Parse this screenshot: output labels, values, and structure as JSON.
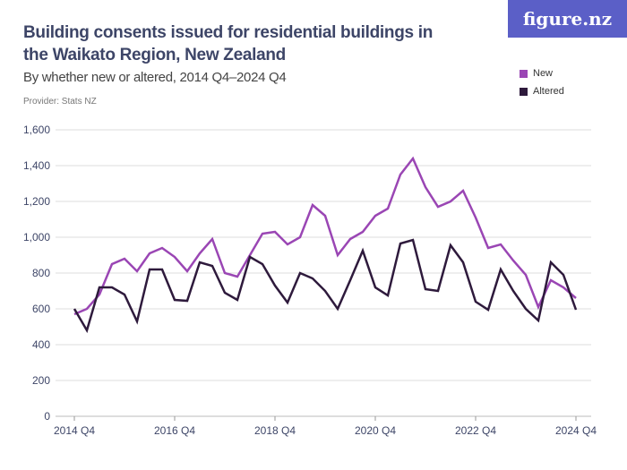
{
  "header": {
    "title": "Building consents issued for residential buildings in the Waikato Region, New Zealand",
    "subtitle": "By whether new or altered, 2014 Q4–2024 Q4",
    "provider": "Provider: Stats NZ",
    "logo": "figure.nz"
  },
  "chart_data": {
    "type": "line",
    "title": "Building consents issued for residential buildings in the Waikato Region, New Zealand",
    "subtitle": "By whether new or altered, 2014 Q4–2024 Q4",
    "xlabel": "",
    "ylabel": "",
    "ylim": [
      0,
      1600
    ],
    "y_ticks": [
      "0",
      "200",
      "400",
      "600",
      "800",
      "1,000",
      "1,200",
      "1,400",
      "1,600"
    ],
    "x_ticks": [
      "2014 Q4",
      "2016 Q4",
      "2018 Q4",
      "2020 Q4",
      "2022 Q4",
      "2024 Q4"
    ],
    "grid": true,
    "legend": "top-right",
    "x_range": [
      "2014 Q4",
      "2024 Q4"
    ],
    "series": [
      {
        "name": "New",
        "color": "#9a46b4",
        "values": [
          570,
          600,
          680,
          850,
          880,
          810,
          910,
          940,
          890,
          810,
          910,
          990,
          800,
          780,
          900,
          1020,
          1030,
          960,
          1000,
          1180,
          1120,
          900,
          990,
          1030,
          1120,
          1160,
          1350,
          1440,
          1280,
          1170,
          1200,
          1260,
          1110,
          940,
          960,
          870,
          790,
          610,
          760,
          720,
          660
        ]
      },
      {
        "name": "Altered",
        "color": "#2e1a3c",
        "values": [
          600,
          480,
          720,
          720,
          680,
          530,
          820,
          820,
          650,
          645,
          860,
          840,
          690,
          650,
          890,
          850,
          730,
          635,
          800,
          770,
          700,
          600,
          760,
          925,
          720,
          675,
          965,
          985,
          710,
          700,
          955,
          860,
          640,
          595,
          820,
          700,
          600,
          535,
          860,
          790,
          595
        ]
      }
    ]
  }
}
